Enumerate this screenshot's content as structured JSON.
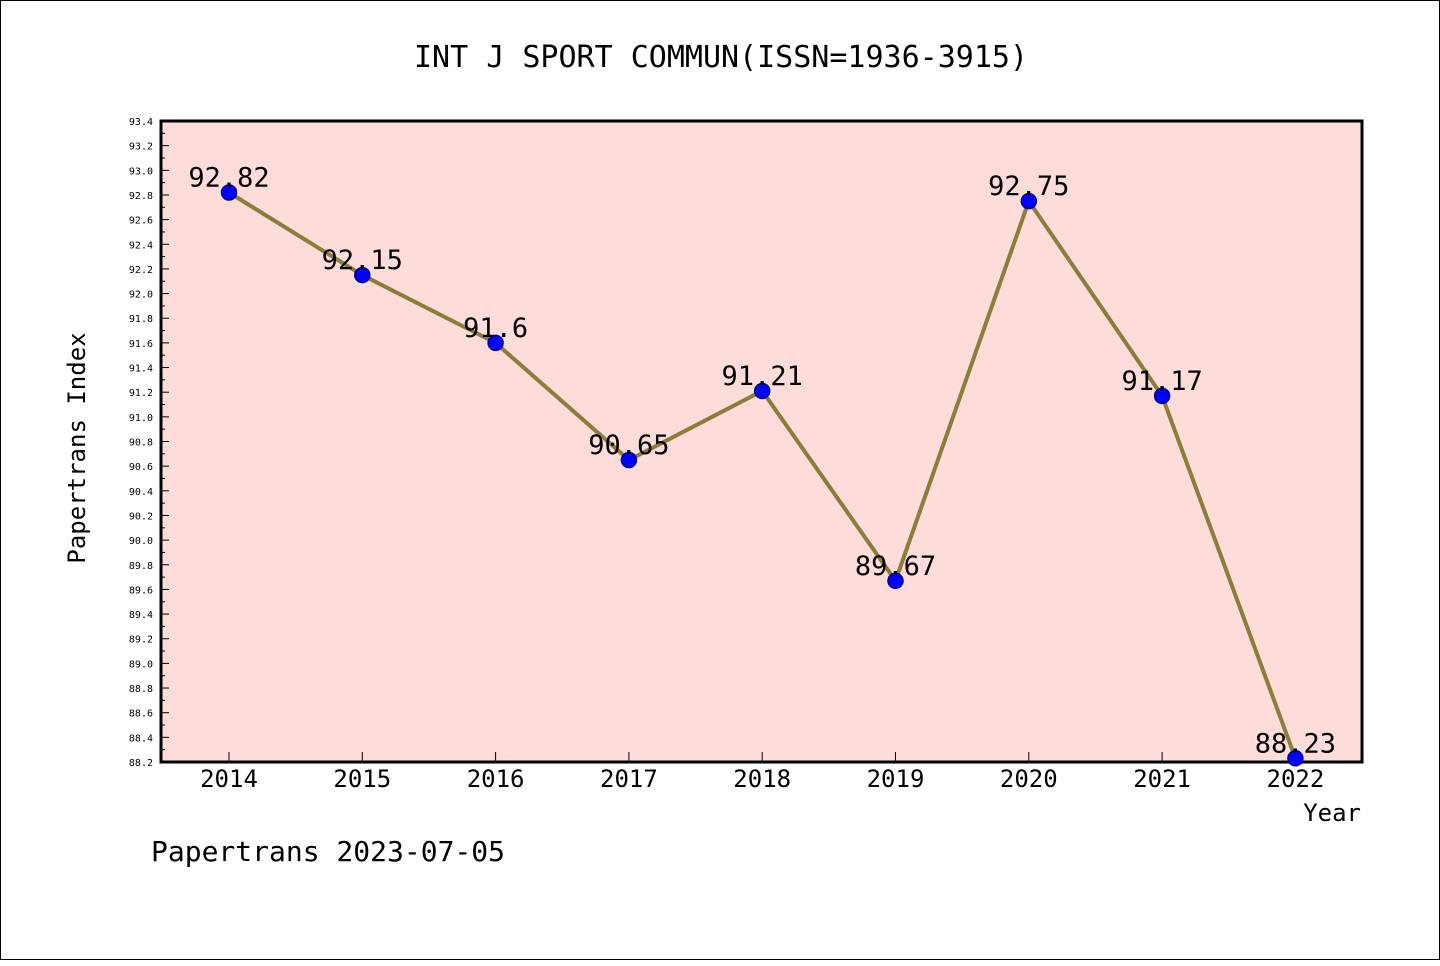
{
  "chart_data": {
    "type": "line",
    "title": "INT J SPORT COMMUN(ISSN=1936-3915)",
    "xlabel": "Year",
    "ylabel": "Papertrans Index",
    "categories": [
      "2014",
      "2015",
      "2016",
      "2017",
      "2018",
      "2019",
      "2020",
      "2021",
      "2022"
    ],
    "series": [
      {
        "values": [
          92.82,
          92.15,
          91.6,
          90.65,
          91.21,
          89.67,
          92.75,
          91.17,
          88.23
        ],
        "data_labels": [
          "92.82",
          "92.15",
          "91.6",
          "90.65",
          "91.21",
          "89.67",
          "92.75",
          "91.17",
          "88.23"
        ]
      }
    ],
    "ylim": [
      88.2,
      93.4
    ],
    "yticks": [
      "88.2",
      "88.4",
      "88.6",
      "88.8",
      "89.0",
      "89.2",
      "89.4",
      "89.6",
      "89.8",
      "90.0",
      "90.2",
      "90.4",
      "90.6",
      "90.8",
      "91.0",
      "91.2",
      "91.4",
      "91.6",
      "91.8",
      "92.0",
      "92.2",
      "92.4",
      "92.6",
      "92.8",
      "93.0",
      "93.2",
      "93.4"
    ],
    "grid": false,
    "colors": {
      "plot_background": "#fddcda",
      "line": "#8b7d3a",
      "marker": "#0000ff",
      "marker_edge": "#00008b"
    }
  },
  "footer": "Papertrans 2023-07-05"
}
